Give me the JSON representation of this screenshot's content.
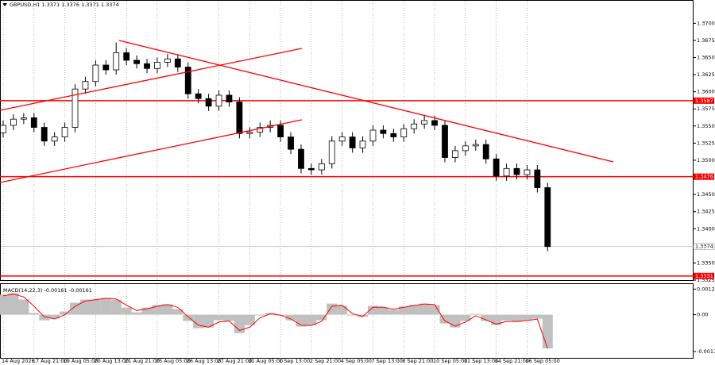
{
  "chart_data": [
    {
      "type": "candlestick",
      "title": "GBPUSD,H1 1.3371 1.3376 1.3371 1.3374",
      "categories": [
        "14 Aug 2026",
        null,
        null,
        "17 Aug 21:00",
        null,
        null,
        "19 Aug 05:00",
        null,
        null,
        "20 Aug 13:00",
        null,
        null,
        "21 Aug 21:00",
        null,
        null,
        "25 Aug 05:00",
        null,
        null,
        "26 Aug 13:00",
        null,
        null,
        "27 Aug 21:00",
        null,
        null,
        "31 Aug 05:00",
        null,
        null,
        "1 Sep 13:00",
        null,
        null,
        "2 Sep 21:00",
        null,
        null,
        "4 Sep 05:00",
        null,
        null,
        "7 Sep 13:00",
        null,
        null,
        "8 Sep 21:00",
        null,
        null,
        "10 Sep 05:00",
        null,
        null,
        "11 Sep 13:00",
        null,
        null,
        "14 Sep 21:00",
        null,
        null,
        "16 Sep 05:00",
        null,
        null
      ],
      "open": [
        1.354,
        1.3551,
        1.356,
        1.3562,
        1.3548,
        1.3528,
        1.3534,
        1.3548,
        1.3604,
        1.3615,
        1.3639,
        1.3632,
        1.3657,
        1.3646,
        1.3641,
        1.3634,
        1.3643,
        1.3648,
        1.3636,
        1.3597,
        1.359,
        1.3579,
        1.3595,
        1.3585,
        1.3539,
        1.3541,
        1.3548,
        1.3551,
        1.3534,
        1.3516,
        1.3488,
        1.3486,
        1.3495,
        1.3528,
        1.3534,
        1.3518,
        1.3528,
        1.3544,
        1.3539,
        1.3534,
        1.3546,
        1.3553,
        1.3558,
        1.3551,
        1.3504,
        1.3514,
        1.3521,
        1.3523,
        1.3502,
        1.3477,
        1.3488,
        1.3479,
        1.3486,
        1.346
      ],
      "high": [
        1.3558,
        1.3567,
        1.3569,
        1.3569,
        1.3555,
        1.3541,
        1.3555,
        1.3611,
        1.3622,
        1.3646,
        1.3646,
        1.3672,
        1.3664,
        1.3653,
        1.3648,
        1.365,
        1.3655,
        1.3655,
        1.3643,
        1.3604,
        1.3597,
        1.3602,
        1.3602,
        1.3592,
        1.3548,
        1.3555,
        1.3558,
        1.3558,
        1.3541,
        1.3523,
        1.3495,
        1.3502,
        1.3535,
        1.3541,
        1.3541,
        1.3535,
        1.3551,
        1.3551,
        1.3546,
        1.3553,
        1.356,
        1.3565,
        1.3565,
        1.3558,
        1.3521,
        1.3528,
        1.353,
        1.353,
        1.3509,
        1.3495,
        1.3495,
        1.3493,
        1.3493,
        1.3467
      ],
      "low": [
        1.3533,
        1.3544,
        1.3553,
        1.3541,
        1.3521,
        1.3521,
        1.3527,
        1.3541,
        1.3597,
        1.3608,
        1.3625,
        1.3625,
        1.3639,
        1.3634,
        1.3627,
        1.3627,
        1.3636,
        1.3629,
        1.359,
        1.3583,
        1.3572,
        1.3572,
        1.3578,
        1.3532,
        1.3532,
        1.3534,
        1.3541,
        1.3527,
        1.3509,
        1.3481,
        1.3479,
        1.3479,
        1.3488,
        1.3521,
        1.3511,
        1.3511,
        1.3521,
        1.3532,
        1.3527,
        1.3527,
        1.3539,
        1.3546,
        1.3544,
        1.3497,
        1.3497,
        1.3507,
        1.3514,
        1.3495,
        1.347,
        1.347,
        1.3472,
        1.3472,
        1.3453,
        1.3367
      ],
      "close": [
        1.3551,
        1.356,
        1.3562,
        1.3548,
        1.3528,
        1.3534,
        1.3548,
        1.3604,
        1.3615,
        1.3639,
        1.3632,
        1.3657,
        1.3646,
        1.3641,
        1.3634,
        1.3643,
        1.3648,
        1.3636,
        1.3597,
        1.359,
        1.3579,
        1.3595,
        1.3585,
        1.3539,
        1.3541,
        1.3548,
        1.3551,
        1.3534,
        1.3516,
        1.3488,
        1.3486,
        1.3495,
        1.3528,
        1.3534,
        1.3518,
        1.3528,
        1.3544,
        1.3539,
        1.3534,
        1.3546,
        1.3553,
        1.3558,
        1.3551,
        1.3504,
        1.3514,
        1.3521,
        1.3523,
        1.3502,
        1.3477,
        1.3488,
        1.3479,
        1.3486,
        1.346,
        1.3374
      ],
      "up_color": "#ffffff",
      "down_color": "#000000",
      "ylim": [
        1.3325,
        1.3734
      ],
      "yticks": [
        {
          "value": 1.37,
          "label": "1.3700"
        },
        1.3675,
        {
          "value": 1.365,
          "label": "1.3650"
        },
        1.3625,
        {
          "value": 1.36,
          "label": "1.3600"
        },
        1.3575,
        {
          "value": 1.355,
          "label": "1.3550"
        },
        1.3525,
        {
          "value": 1.35,
          "label": "1.3500"
        },
        {
          "value": 1.345,
          "label": "1.3450"
        },
        1.3425,
        {
          "value": 1.34,
          "label": "1.3400"
        },
        {
          "value": 1.335,
          "label": "1.3350"
        },
        1.3325
      ],
      "levels": [
        1.3587,
        1.3476,
        1.3331
      ],
      "level_color": "#ff0000",
      "current_price": 1.3374,
      "grid": true
    },
    {
      "type": "macd",
      "title": "MACD(14,22,3) -0.00161 -0.00161",
      "histogram": [
        0.00095,
        0.00103,
        0.00072,
        8e-05,
        -0.00027,
        -0.00019,
        0.00015,
        0.00057,
        0.00072,
        0.00072,
        0.0008,
        0.00072,
        0.00034,
        0.00011,
        0.00034,
        0.00046,
        0.0005,
        0.00027,
        -0.0003,
        -0.00065,
        -0.00061,
        -0.00027,
        -0.0003,
        -0.00088,
        -0.0005,
        -4e-05,
        8e-05,
        -4e-05,
        -0.00027,
        -0.00057,
        -0.0005,
        -0.00027,
        0.00053,
        0.00042,
        -4e-05,
        -0.00011,
        0.00042,
        0.00034,
        0.00023,
        0.00038,
        0.00046,
        0.00053,
        0.00046,
        -0.00042,
        -0.00061,
        -0.0003,
        4e-05,
        -0.0003,
        -0.0005,
        -0.00027,
        -0.00034,
        -0.00027,
        -0.00019,
        -0.00161
      ],
      "signal": [
        0.0009,
        0.00098,
        0.00085,
        0.0004,
        -0.0001,
        -0.0002,
        0,
        0.0004,
        0.00065,
        0.00072,
        0.00078,
        0.00075,
        0.00045,
        0.0002,
        0.00028,
        0.0004,
        0.00048,
        0.00035,
        -0.0001,
        -0.0005,
        -0.0006,
        -0.00035,
        -0.0003,
        -0.00075,
        -0.0006,
        -0.00015,
        4e-05,
        -2e-05,
        -0.0002,
        -0.0005,
        -0.00052,
        -0.00032,
        0.0004,
        0.00045,
        5e-05,
        -8e-05,
        0.00035,
        0.00036,
        0.00026,
        0.00035,
        0.00044,
        0.00051,
        0.00048,
        -0.0003,
        -0.00055,
        -0.00035,
        -5e-05,
        -0.00025,
        -0.00045,
        -0.00032,
        -0.00033,
        -0.00028,
        -0.00021,
        -0.00161
      ],
      "histogram_color": "#c0c0c0",
      "signal_color": "#ff0000",
      "ylim": [
        -0.0021,
        0.0015
      ],
      "yticks": [
        0.00122,
        {
          "value": 0,
          "label": "0.00"
        },
        -0.00176
      ]
    }
  ]
}
